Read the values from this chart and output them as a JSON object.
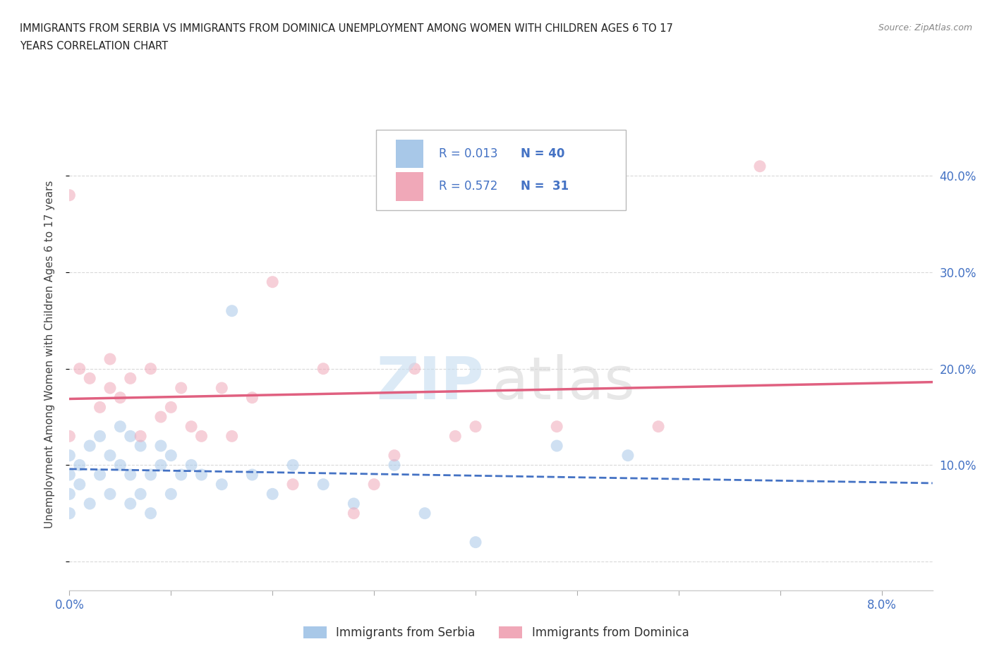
{
  "title_line1": "IMMIGRANTS FROM SERBIA VS IMMIGRANTS FROM DOMINICA UNEMPLOYMENT AMONG WOMEN WITH CHILDREN AGES 6 TO 17",
  "title_line2": "YEARS CORRELATION CHART",
  "source": "Source: ZipAtlas.com",
  "ylabel": "Unemployment Among Women with Children Ages 6 to 17 years",
  "xlim": [
    0.0,
    0.085
  ],
  "ylim": [
    -0.03,
    0.46
  ],
  "xticks": [
    0.0,
    0.01,
    0.02,
    0.03,
    0.04,
    0.05,
    0.06,
    0.07,
    0.08
  ],
  "yticks": [
    0.0,
    0.1,
    0.2,
    0.3,
    0.4
  ],
  "yticklabels": [
    "",
    "10.0%",
    "20.0%",
    "30.0%",
    "40.0%"
  ],
  "serbia_color": "#a8c8e8",
  "dominica_color": "#f0a8b8",
  "serbia_line_color": "#4472c4",
  "dominica_line_color": "#e06080",
  "serbia_R": 0.013,
  "serbia_N": 40,
  "dominica_R": 0.572,
  "dominica_N": 31,
  "legend_label_serbia": "Immigrants from Serbia",
  "legend_label_dominica": "Immigrants from Dominica",
  "serbia_scatter_x": [
    0.0,
    0.0,
    0.0,
    0.0,
    0.001,
    0.001,
    0.002,
    0.002,
    0.003,
    0.003,
    0.004,
    0.004,
    0.005,
    0.005,
    0.006,
    0.006,
    0.006,
    0.007,
    0.007,
    0.008,
    0.008,
    0.009,
    0.009,
    0.01,
    0.01,
    0.011,
    0.012,
    0.013,
    0.015,
    0.016,
    0.018,
    0.02,
    0.022,
    0.025,
    0.028,
    0.032,
    0.035,
    0.04,
    0.048,
    0.055
  ],
  "serbia_scatter_y": [
    0.09,
    0.07,
    0.11,
    0.05,
    0.1,
    0.08,
    0.12,
    0.06,
    0.13,
    0.09,
    0.11,
    0.07,
    0.1,
    0.14,
    0.13,
    0.09,
    0.06,
    0.12,
    0.07,
    0.09,
    0.05,
    0.12,
    0.1,
    0.11,
    0.07,
    0.09,
    0.1,
    0.09,
    0.08,
    0.26,
    0.09,
    0.07,
    0.1,
    0.08,
    0.06,
    0.1,
    0.05,
    0.02,
    0.12,
    0.11
  ],
  "dominica_scatter_x": [
    0.0,
    0.0,
    0.001,
    0.002,
    0.003,
    0.004,
    0.004,
    0.005,
    0.006,
    0.007,
    0.008,
    0.009,
    0.01,
    0.011,
    0.012,
    0.013,
    0.015,
    0.016,
    0.018,
    0.02,
    0.022,
    0.025,
    0.028,
    0.03,
    0.032,
    0.034,
    0.038,
    0.04,
    0.048,
    0.058,
    0.068
  ],
  "dominica_scatter_y": [
    0.38,
    0.13,
    0.2,
    0.19,
    0.16,
    0.21,
    0.18,
    0.17,
    0.19,
    0.13,
    0.2,
    0.15,
    0.16,
    0.18,
    0.14,
    0.13,
    0.18,
    0.13,
    0.17,
    0.29,
    0.08,
    0.2,
    0.05,
    0.08,
    0.11,
    0.2,
    0.13,
    0.14,
    0.14,
    0.14,
    0.41
  ],
  "background_color": "#ffffff",
  "grid_color": "#d0d0d0"
}
